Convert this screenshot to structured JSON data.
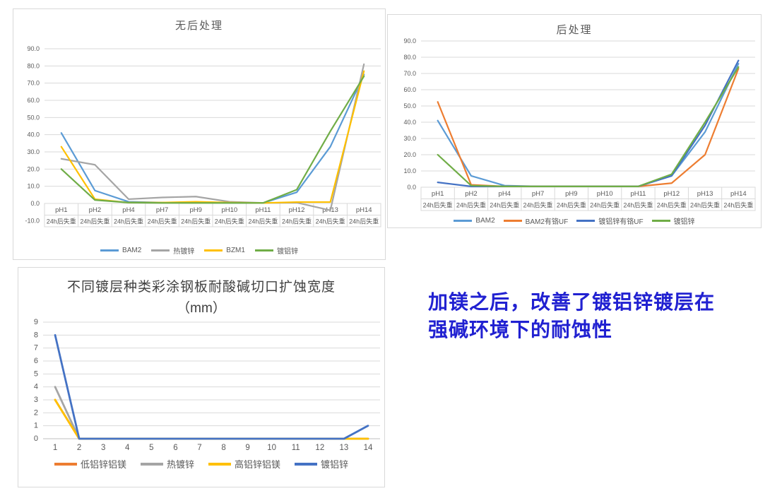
{
  "annotation": {
    "text": "加镁之后，改善了镀铝锌镀层在强碱环境下的耐蚀性",
    "lines": [
      "加镁之后，改善了镀铝锌镀层在",
      "强碱环境下的耐蚀性"
    ],
    "color": "#2121D1"
  },
  "palette": {
    "gridline": "#D9D9D9",
    "axis_line": "#BFBFBF",
    "tick_text": "#595959"
  },
  "chart_data": [
    {
      "id": "no-post-treatment",
      "type": "line",
      "title": "无后处理",
      "categories": [
        "pH1",
        "pH2",
        "pH4",
        "pH7",
        "pH9",
        "pH10",
        "pH11",
        "pH12",
        "pH13",
        "pH14"
      ],
      "category_sublabel": "24h后失重",
      "yticks": [
        "90.0",
        "80.0",
        "70.0",
        "60.0",
        "50.0",
        "40.0",
        "30.0",
        "20.0",
        "10.0",
        "0.0",
        "-10.0"
      ],
      "ylim": [
        -10,
        90
      ],
      "grid": true,
      "legend_position": "bottom",
      "series": [
        {
          "name": "BAM2",
          "color": "#5B9BD5",
          "values": [
            41,
            7.5,
            1,
            0.5,
            0.5,
            0.3,
            0.3,
            6.5,
            33,
            75
          ]
        },
        {
          "name": "热镀锌",
          "color": "#A5A5A5",
          "values": [
            26,
            22.5,
            2.5,
            3.5,
            4,
            1,
            0.3,
            0.5,
            -4,
            81
          ]
        },
        {
          "name": "BZM1",
          "color": "#FFC000",
          "values": [
            33,
            2.5,
            0.5,
            0.5,
            1,
            0.5,
            0.3,
            0.8,
            0.8,
            77
          ]
        },
        {
          "name": "镀铝锌",
          "color": "#70AD47",
          "values": [
            20,
            2,
            0.5,
            0.3,
            0.3,
            0.3,
            0.3,
            8,
            42,
            74
          ]
        }
      ]
    },
    {
      "id": "post-treatment",
      "type": "line",
      "title": "后处理",
      "categories": [
        "pH1",
        "pH2",
        "pH4",
        "pH7",
        "pH9",
        "pH10",
        "pH11",
        "pH12",
        "pH13",
        "pH14"
      ],
      "category_sublabel": "24h后失重",
      "yticks": [
        "90.0",
        "80.0",
        "70.0",
        "60.0",
        "50.0",
        "40.0",
        "30.0",
        "20.0",
        "10.0",
        "0.0"
      ],
      "ylim": [
        0,
        90
      ],
      "grid": true,
      "legend_position": "bottom",
      "series": [
        {
          "name": "BAM2",
          "color": "#5B9BD5",
          "values": [
            41,
            7,
            1,
            0.5,
            0.5,
            0.5,
            0.5,
            7,
            34,
            76
          ]
        },
        {
          "name": "BAM2有铬UF",
          "color": "#ED7D31",
          "values": [
            52.5,
            1.5,
            0.5,
            0.5,
            0.5,
            0.5,
            0.5,
            2.5,
            20,
            73
          ]
        },
        {
          "name": "镀铝锌有铬UF",
          "color": "#4472C4",
          "values": [
            3,
            0.5,
            0.5,
            0.5,
            0.5,
            0.5,
            0.5,
            7,
            38,
            78
          ]
        },
        {
          "name": "镀铝锌",
          "color": "#70AD47",
          "values": [
            20,
            1,
            0.5,
            0.5,
            0.5,
            0.5,
            0.5,
            8,
            40,
            74
          ]
        }
      ]
    },
    {
      "id": "cut-edge-corrosion-width",
      "type": "line",
      "title": "不同镀层种类彩涂钢板耐酸碱切口扩蚀宽度",
      "subtitle": "（mm）",
      "categories": [
        "1",
        "2",
        "3",
        "4",
        "5",
        "6",
        "7",
        "8",
        "9",
        "10",
        "11",
        "12",
        "13",
        "14"
      ],
      "yticks": [
        "9",
        "8",
        "7",
        "6",
        "5",
        "4",
        "3",
        "2",
        "1",
        "0"
      ],
      "ylim": [
        0,
        9
      ],
      "grid": true,
      "legend_position": "bottom",
      "series": [
        {
          "name": "低铝锌铝镁",
          "color": "#ED7D31",
          "values": [
            3,
            0,
            0,
            0,
            0,
            0,
            0,
            0,
            0,
            0,
            0,
            0,
            0,
            0
          ]
        },
        {
          "name": "热镀锌",
          "color": "#A5A5A5",
          "values": [
            4,
            0,
            0,
            0,
            0,
            0,
            0,
            0,
            0,
            0,
            0,
            0,
            0,
            0
          ]
        },
        {
          "name": "高铝锌铝镁",
          "color": "#FFC000",
          "values": [
            3,
            0,
            0,
            0,
            0,
            0,
            0,
            0,
            0,
            0,
            0,
            0,
            0,
            0
          ]
        },
        {
          "name": "镀铝锌",
          "color": "#4472C4",
          "values": [
            8,
            0,
            0,
            0,
            0,
            0,
            0,
            0,
            0,
            0,
            0,
            0,
            0,
            1
          ]
        }
      ]
    }
  ]
}
